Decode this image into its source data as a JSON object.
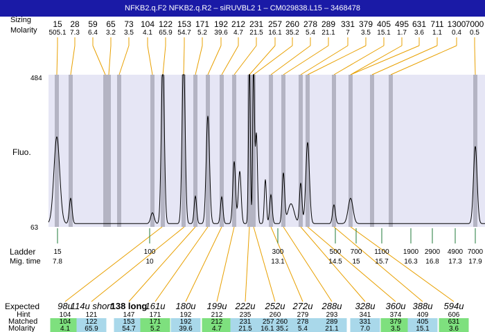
{
  "title": "NFKB2.q.F2  NFKB2.q.R2 – siRUVBL2 1 – CM029838.L15 – 3468478",
  "labels": {
    "sizing": "Sizing",
    "molarity": "Molarity",
    "fluo": "Fluo.",
    "ladder": "Ladder",
    "mig_time": "Mig. time",
    "expected": "Expected",
    "hint": "Hint",
    "matched": "Matched",
    "molarity_bottom": "Molarity"
  },
  "colors": {
    "title_bg": "#1a1aa6",
    "plot_bg": "#e6e6f5",
    "band": "#b4b4c3",
    "connector": "#e8a000",
    "ladder_tick": "#1f7a3a",
    "matched_good": "#7ee07e",
    "matched_other": "#a9d8ea"
  },
  "chart_data": {
    "type": "line",
    "xlabel": "",
    "ylabel": "Fluo.",
    "ylim": [
      63,
      484
    ],
    "y_ticks": [
      "484",
      "63"
    ],
    "peaks_top": [
      {
        "size": "15",
        "molarity": "505.1"
      },
      {
        "size": "28",
        "molarity": "7.3"
      },
      {
        "size": "59",
        "molarity": "6.4"
      },
      {
        "size": "65",
        "molarity": "3.2"
      },
      {
        "size": "73",
        "molarity": "3.5"
      },
      {
        "size": "104",
        "molarity": "4.1"
      },
      {
        "size": "122",
        "molarity": "65.9"
      },
      {
        "size": "153",
        "molarity": "54.7"
      },
      {
        "size": "171",
        "molarity": "5.2"
      },
      {
        "size": "192",
        "molarity": "39.6"
      },
      {
        "size": "212",
        "molarity": "4.7"
      },
      {
        "size": "231",
        "molarity": "21.5"
      },
      {
        "size": "257",
        "molarity": "16.1"
      },
      {
        "size": "260",
        "molarity": "35.2"
      },
      {
        "size": "278",
        "molarity": "5.4"
      },
      {
        "size": "289",
        "molarity": "21.1"
      },
      {
        "size": "331",
        "molarity": "7"
      },
      {
        "size": "379",
        "molarity": "3.5"
      },
      {
        "size": "405",
        "molarity": "15.1"
      },
      {
        "size": "495",
        "molarity": "1.7"
      },
      {
        "size": "631",
        "molarity": "3.6"
      },
      {
        "size": "711",
        "molarity": "1.1"
      },
      {
        "size": "1300",
        "molarity": "0.4"
      },
      {
        "size": "7000",
        "molarity": "0.5"
      }
    ],
    "ladder": [
      {
        "size": "15",
        "mig_time": "7.8"
      },
      {
        "size": "100",
        "mig_time": "10"
      },
      {
        "size": "300",
        "mig_time": "13.1"
      },
      {
        "size": "500",
        "mig_time": "14.5"
      },
      {
        "size": "700",
        "mig_time": "15"
      },
      {
        "size": "1100",
        "mig_time": "15.7"
      },
      {
        "size": "1900",
        "mig_time": "16.3"
      },
      {
        "size": "2900",
        "mig_time": "16.8"
      },
      {
        "size": "4900",
        "mig_time": "17.3"
      },
      {
        "size": "7000",
        "mig_time": "17.9"
      }
    ],
    "expected": [
      {
        "label": "98u",
        "bold": false,
        "hint": "104",
        "matched": "104",
        "molarity": "4.1",
        "good": true
      },
      {
        "label": "114u short",
        "bold": false,
        "hint": "121",
        "matched": "122",
        "molarity": "65.9",
        "good": false
      },
      {
        "label": "138 long",
        "bold": true,
        "hint": "147",
        "matched": "153",
        "molarity": "54.7",
        "good": false
      },
      {
        "label": "161u",
        "bold": false,
        "hint": "171",
        "matched": "171",
        "molarity": "5.2",
        "good": true
      },
      {
        "label": "180u",
        "bold": false,
        "hint": "192",
        "matched": "192",
        "molarity": "39.6",
        "good": false
      },
      {
        "label": "199u",
        "bold": false,
        "hint": "212",
        "matched": "212",
        "molarity": "4.7",
        "good": true
      },
      {
        "label": "222u",
        "bold": false,
        "hint": "235",
        "matched": "231",
        "molarity": "21.5",
        "good": false
      },
      {
        "label": "252u",
        "bold": false,
        "hint": "260",
        "matched": "257 260",
        "molarity": "16.1 35.2",
        "good": false
      },
      {
        "label": "272u",
        "bold": false,
        "hint": "279",
        "matched": "278",
        "molarity": "5.4",
        "good": false
      },
      {
        "label": "288u",
        "bold": false,
        "hint": "293",
        "matched": "289",
        "molarity": "21.1",
        "good": false
      },
      {
        "label": "328u",
        "bold": false,
        "hint": "341",
        "matched": "331",
        "molarity": "7.0",
        "good": false
      },
      {
        "label": "360u",
        "bold": false,
        "hint": "374",
        "matched": "379",
        "molarity": "3.5",
        "good": true
      },
      {
        "label": "388u",
        "bold": false,
        "hint": "409",
        "matched": "405",
        "molarity": "15.1",
        "good": false
      },
      {
        "label": "594u",
        "bold": false,
        "hint": "606",
        "matched": "631",
        "molarity": "3.6",
        "good": true
      }
    ]
  }
}
